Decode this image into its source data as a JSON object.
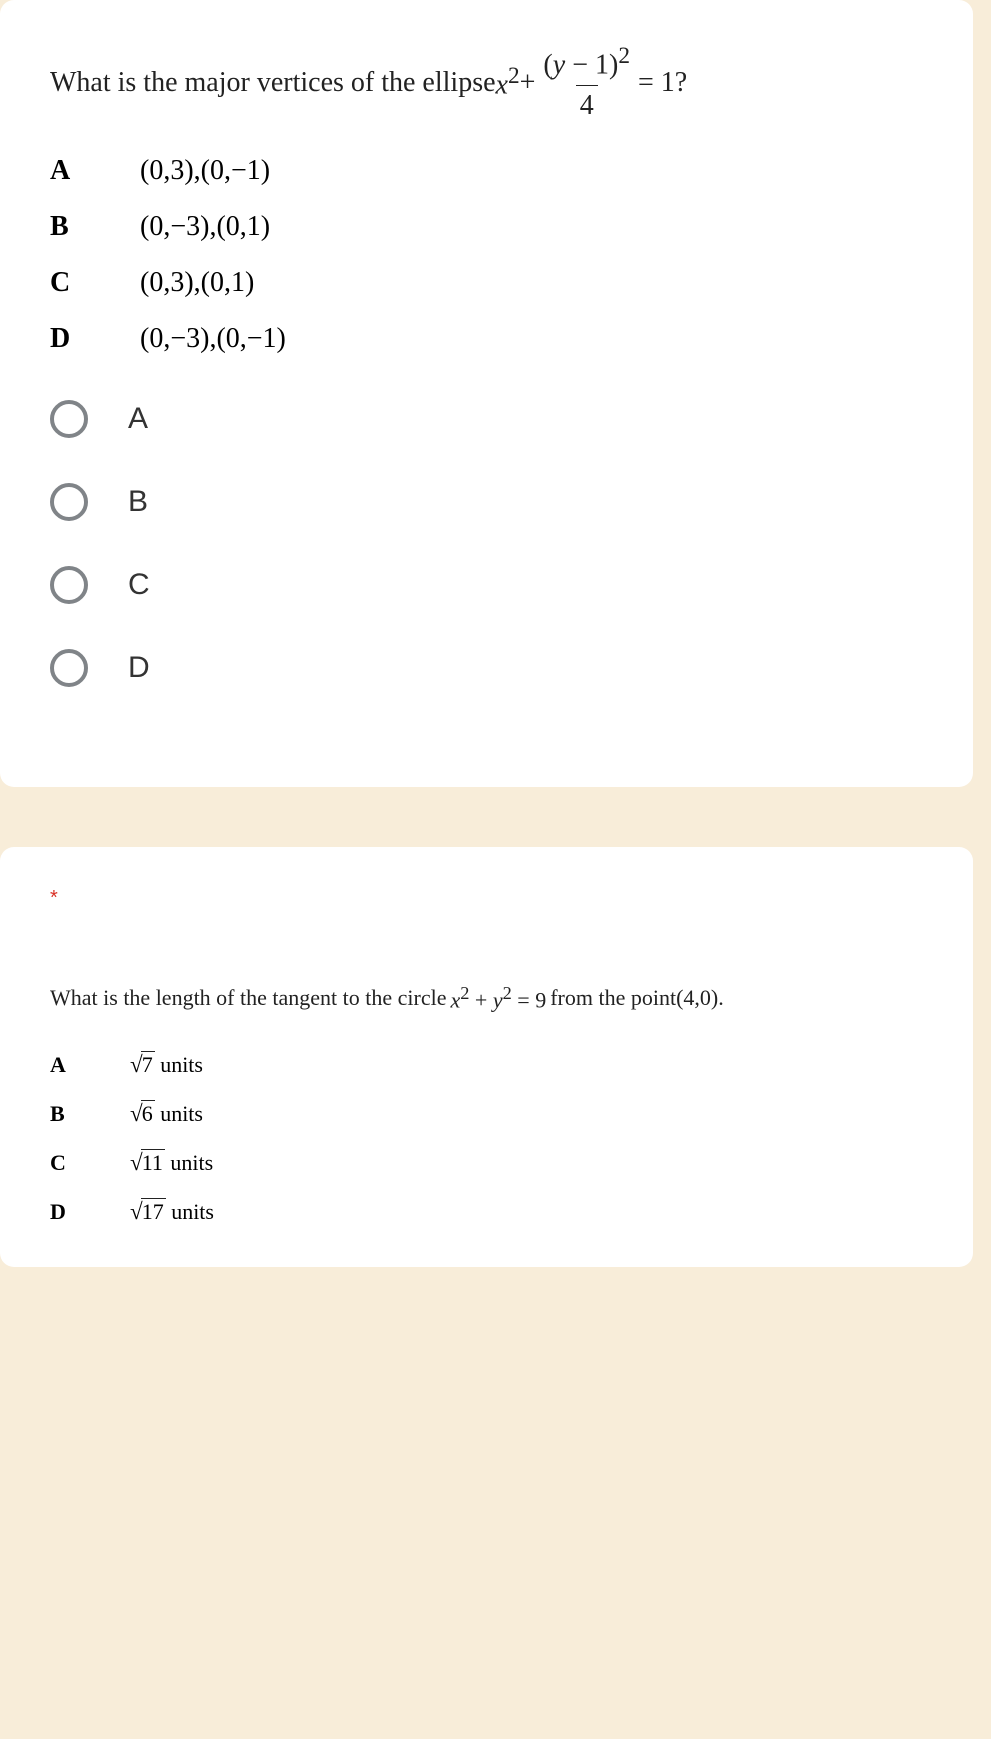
{
  "colors": {
    "page_bg": "#f8edd9",
    "card_bg": "#ffffff",
    "text": "#222222",
    "radio_border": "#808488",
    "required": "#d93025"
  },
  "q1": {
    "prompt_prefix": "What is the major vertices of the ellipse ",
    "equation": {
      "x_term": "x",
      "x_exp": "2",
      "plus": " + ",
      "num_left": "(",
      "num_var": "y",
      "num_minus": " − 1",
      "num_right": ")",
      "num_exp": "2",
      "den": "4",
      "equals": " = 1?"
    },
    "choices": [
      {
        "letter": "A",
        "text": "(0,3),(0,−1)"
      },
      {
        "letter": "B",
        "text": "(0,−3),(0,1)"
      },
      {
        "letter": "C",
        "text": "(0,3),(0,1)"
      },
      {
        "letter": "D",
        "text": "(0,−3),(0,−1)"
      }
    ],
    "radio_options": [
      "A",
      "B",
      "C",
      "D"
    ],
    "answer_fontsize": 28
  },
  "q2": {
    "required_marker": "*",
    "prompt_prefix": "What is the length of the tangent to the circle ",
    "equation": {
      "lhs_x": "x",
      "lhs_x_exp": "2",
      "plus": " + ",
      "lhs_y": "y",
      "lhs_y_exp": "2",
      "eq": " = 9"
    },
    "prompt_mid": " from the point ",
    "point": "(4,0).",
    "choices": [
      {
        "letter": "A",
        "radicand": "7",
        "suffix": "  units"
      },
      {
        "letter": "B",
        "radicand": "6",
        "suffix": " units"
      },
      {
        "letter": "C",
        "radicand": "11",
        "suffix": " units"
      },
      {
        "letter": "D",
        "radicand": "17",
        "suffix": " units"
      }
    ],
    "answer_fontsize": 22
  }
}
